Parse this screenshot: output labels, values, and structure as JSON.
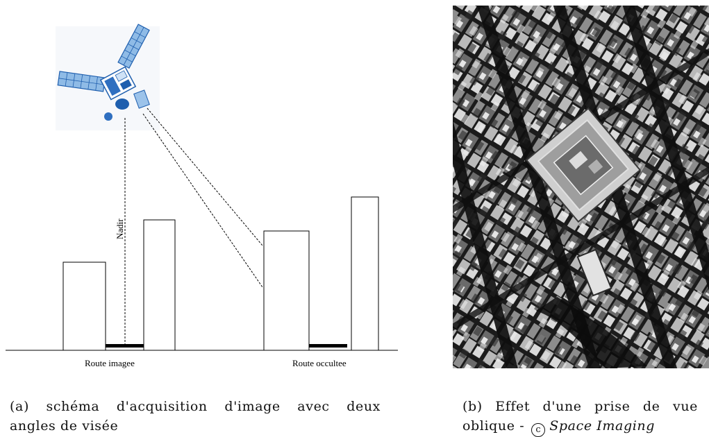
{
  "diagram": {
    "nadir_label": "Nadir",
    "left_road_label": "Route imagee",
    "right_road_label": "Route occultee"
  },
  "photo": {
    "description_icon": "aerial-city-photo-icon"
  },
  "captions": {
    "a_line1": "(a) schéma d'acquisition d'image avec deux",
    "a_line2": "angles de visée",
    "b_line1": "(b) Effet d'une prise de vue",
    "b_line2_prefix": "oblique -",
    "b_copyright_symbol": "c",
    "b_credit": "Space Imaging"
  },
  "colors": {
    "satellite_blue": "#1f5fae",
    "satellite_light": "#9cc3ea",
    "photo_dark": "#141414",
    "photo_light": "#d8d8d8"
  }
}
